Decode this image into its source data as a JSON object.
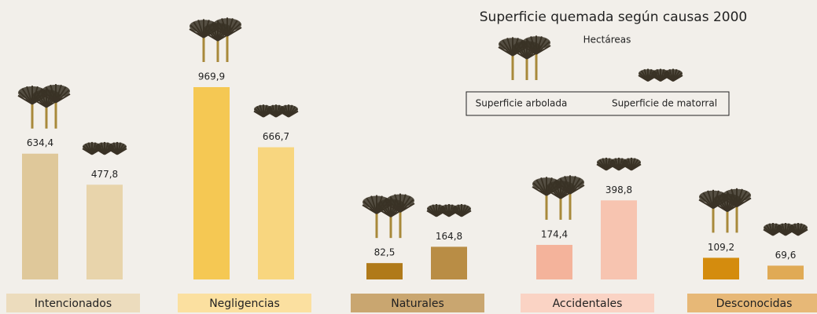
{
  "chart_data": {
    "type": "bar",
    "title": "Superficie quemada según causas 2000",
    "subtitle": "Hectáreas",
    "categories": [
      "Intencionados",
      "Negligencias",
      "Naturales",
      "Accidentales",
      "Desconocidas"
    ],
    "category_colors": [
      "#ecdcbd",
      "#fbe0a0",
      "#c9a670",
      "#fad3c4",
      "#e7b877"
    ],
    "series": [
      {
        "name": "Superficie arbolada",
        "colors": [
          "#dfc89a",
          "#f5c853",
          "#b07a1a",
          "#f4b39b",
          "#d48c0e"
        ],
        "values": [
          634.4,
          969.9,
          82.5,
          174.4,
          109.2
        ],
        "value_labels": [
          "634,4",
          "969,9",
          "82,5",
          "174,4",
          "109,2"
        ]
      },
      {
        "name": "Superficie de matorral",
        "colors": [
          "#e8d4ab",
          "#f8d67f",
          "#b98d45",
          "#f7c4b0",
          "#e0aa55"
        ],
        "values": [
          477.8,
          666.7,
          164.8,
          398.8,
          69.6
        ],
        "value_labels": [
          "477,8",
          "666,7",
          "164,8",
          "398,8",
          "69,6"
        ]
      }
    ]
  }
}
